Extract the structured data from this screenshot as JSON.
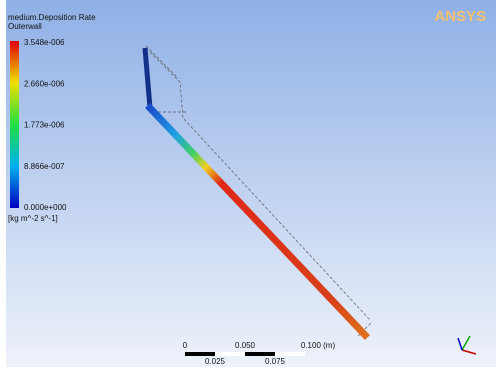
{
  "legend": {
    "variable": "medium.Deposition Rate",
    "location": "Outerwall",
    "labels": [
      "3.548e-006",
      "2.660e-006",
      "1.773e-006",
      "8.866e-007",
      "0.000e+000"
    ],
    "units": "[kg m^-2 s^-1]"
  },
  "logo": "ANSYS",
  "scale_bar": {
    "top_labels": [
      "0",
      "0.050",
      "0.100 (m)"
    ],
    "bottom_labels": [
      "0.025",
      "0.075"
    ]
  }
}
